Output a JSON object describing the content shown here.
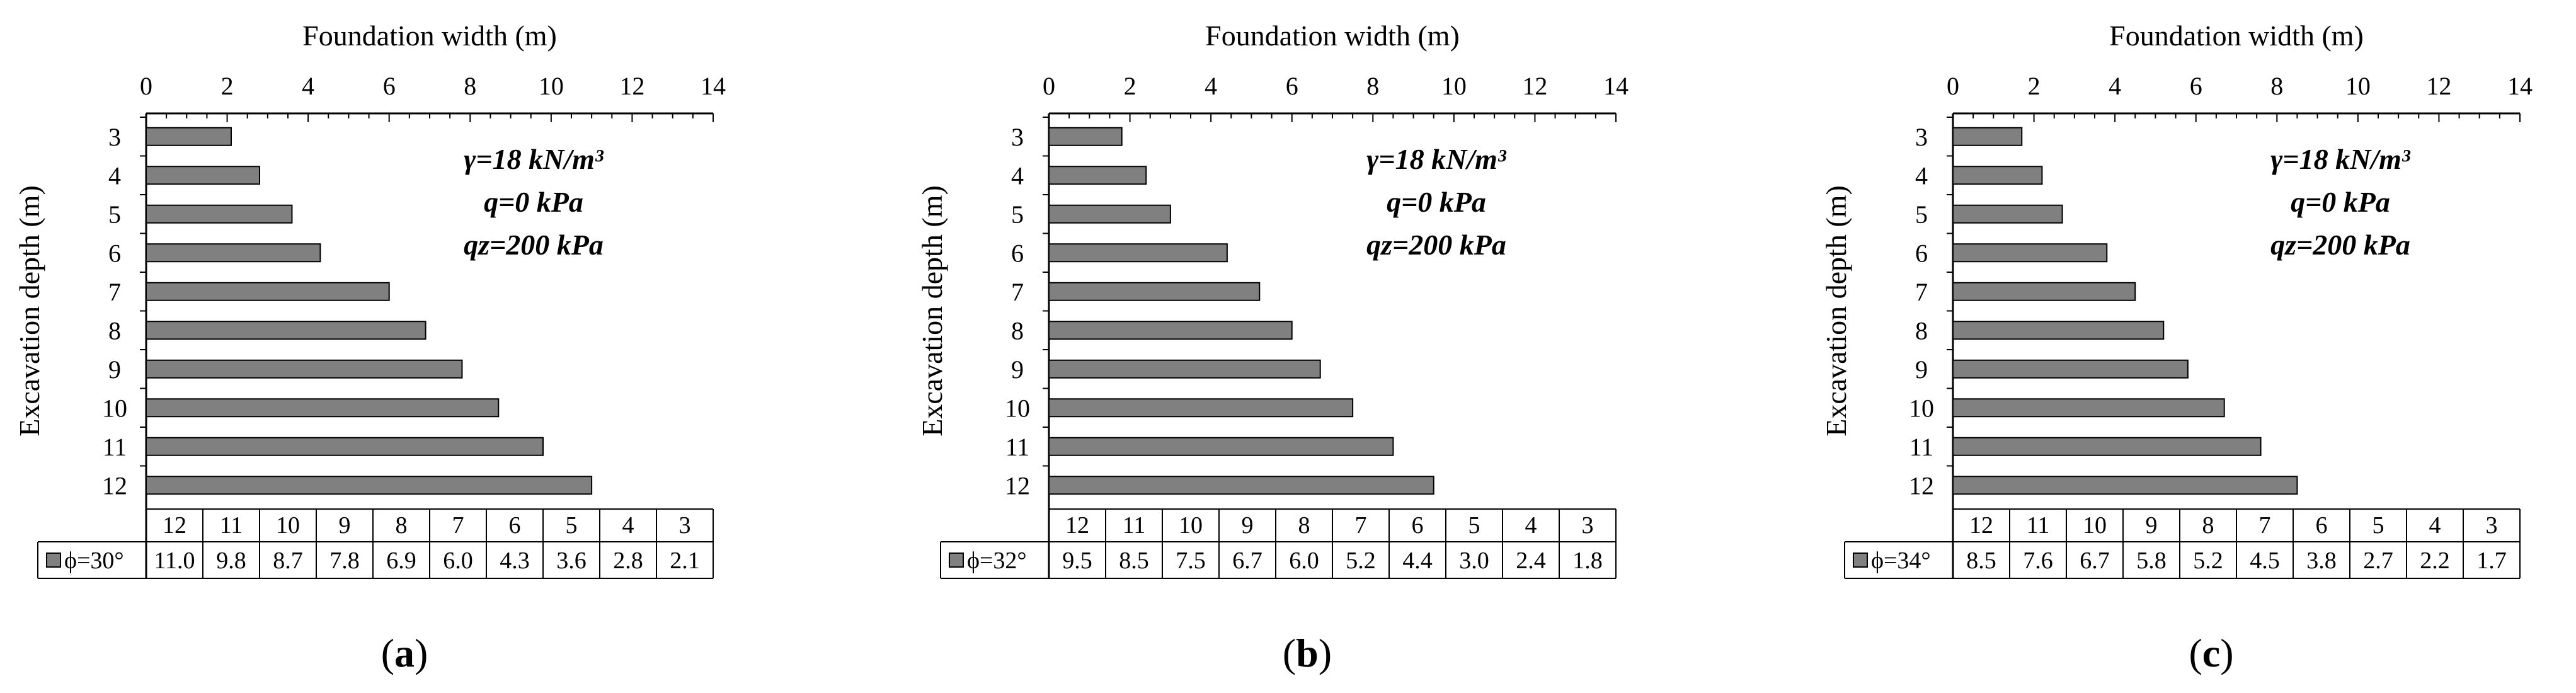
{
  "figure": {
    "panels": [
      {
        "caption_open": "(",
        "caption_letter": "a",
        "caption_close": ")"
      },
      {
        "caption_open": "(",
        "caption_letter": "b",
        "caption_close": ")"
      },
      {
        "caption_open": "(",
        "caption_letter": "c",
        "caption_close": ")"
      }
    ],
    "colors": {
      "bar_fill": "#808080",
      "bar_stroke": "#000000"
    }
  },
  "chart_data": [
    {
      "type": "bar",
      "orientation": "horizontal",
      "xlabel": "Foundation width (m)",
      "ylabel": "Excavation depth (m)",
      "xlim": [
        0,
        14
      ],
      "x_ticks": [
        0,
        2,
        4,
        6,
        8,
        10,
        12,
        14
      ],
      "categories": [
        "3",
        "4",
        "5",
        "6",
        "7",
        "8",
        "9",
        "10",
        "11",
        "12"
      ],
      "series": [
        {
          "name": "ϕ=30°",
          "values": [
            2.1,
            2.8,
            3.6,
            4.3,
            6.0,
            6.9,
            7.8,
            8.7,
            9.8,
            11.0
          ]
        }
      ],
      "annotations": [
        "γ=18 kN/m³",
        "q=0 kPa",
        "qz=200 kPa"
      ],
      "data_table": {
        "header": [
          "12",
          "11",
          "10",
          "9",
          "8",
          "7",
          "6",
          "5",
          "4",
          "3"
        ],
        "values": [
          "11.0",
          "9.8",
          "8.7",
          "7.8",
          "6.9",
          "6.0",
          "4.3",
          "3.6",
          "2.8",
          "2.1"
        ]
      },
      "legend": "data table"
    },
    {
      "type": "bar",
      "orientation": "horizontal",
      "xlabel": "Foundation width (m)",
      "ylabel": "Excavation depth (m)",
      "xlim": [
        0,
        14
      ],
      "x_ticks": [
        0,
        2,
        4,
        6,
        8,
        10,
        12,
        14
      ],
      "categories": [
        "3",
        "4",
        "5",
        "6",
        "7",
        "8",
        "9",
        "10",
        "11",
        "12"
      ],
      "series": [
        {
          "name": "ϕ=32°",
          "values": [
            1.8,
            2.4,
            3.0,
            4.4,
            5.2,
            6.0,
            6.7,
            7.5,
            8.5,
            9.5
          ]
        }
      ],
      "annotations": [
        "γ=18 kN/m³",
        "q=0 kPa",
        "qz=200 kPa"
      ],
      "data_table": {
        "header": [
          "12",
          "11",
          "10",
          "9",
          "8",
          "7",
          "6",
          "5",
          "4",
          "3"
        ],
        "values": [
          "9.5",
          "8.5",
          "7.5",
          "6.7",
          "6.0",
          "5.2",
          "4.4",
          "3.0",
          "2.4",
          "1.8"
        ]
      },
      "legend": "data table"
    },
    {
      "type": "bar",
      "orientation": "horizontal",
      "xlabel": "Foundation width (m)",
      "ylabel": "Excavation depth (m)",
      "xlim": [
        0,
        14
      ],
      "x_ticks": [
        0,
        2,
        4,
        6,
        8,
        10,
        12,
        14
      ],
      "categories": [
        "3",
        "4",
        "5",
        "6",
        "7",
        "8",
        "9",
        "10",
        "11",
        "12"
      ],
      "series": [
        {
          "name": "ϕ=34°",
          "values": [
            1.7,
            2.2,
            2.7,
            3.8,
            4.5,
            5.2,
            5.8,
            6.7,
            7.6,
            8.5
          ]
        }
      ],
      "annotations": [
        "γ=18 kN/m³",
        "q=0 kPa",
        "qz=200 kPa"
      ],
      "data_table": {
        "header": [
          "12",
          "11",
          "10",
          "9",
          "8",
          "7",
          "6",
          "5",
          "4",
          "3"
        ],
        "values": [
          "8.5",
          "7.6",
          "6.7",
          "5.8",
          "5.2",
          "4.5",
          "3.8",
          "2.7",
          "2.2",
          "1.7"
        ]
      },
      "legend": "data table"
    }
  ]
}
